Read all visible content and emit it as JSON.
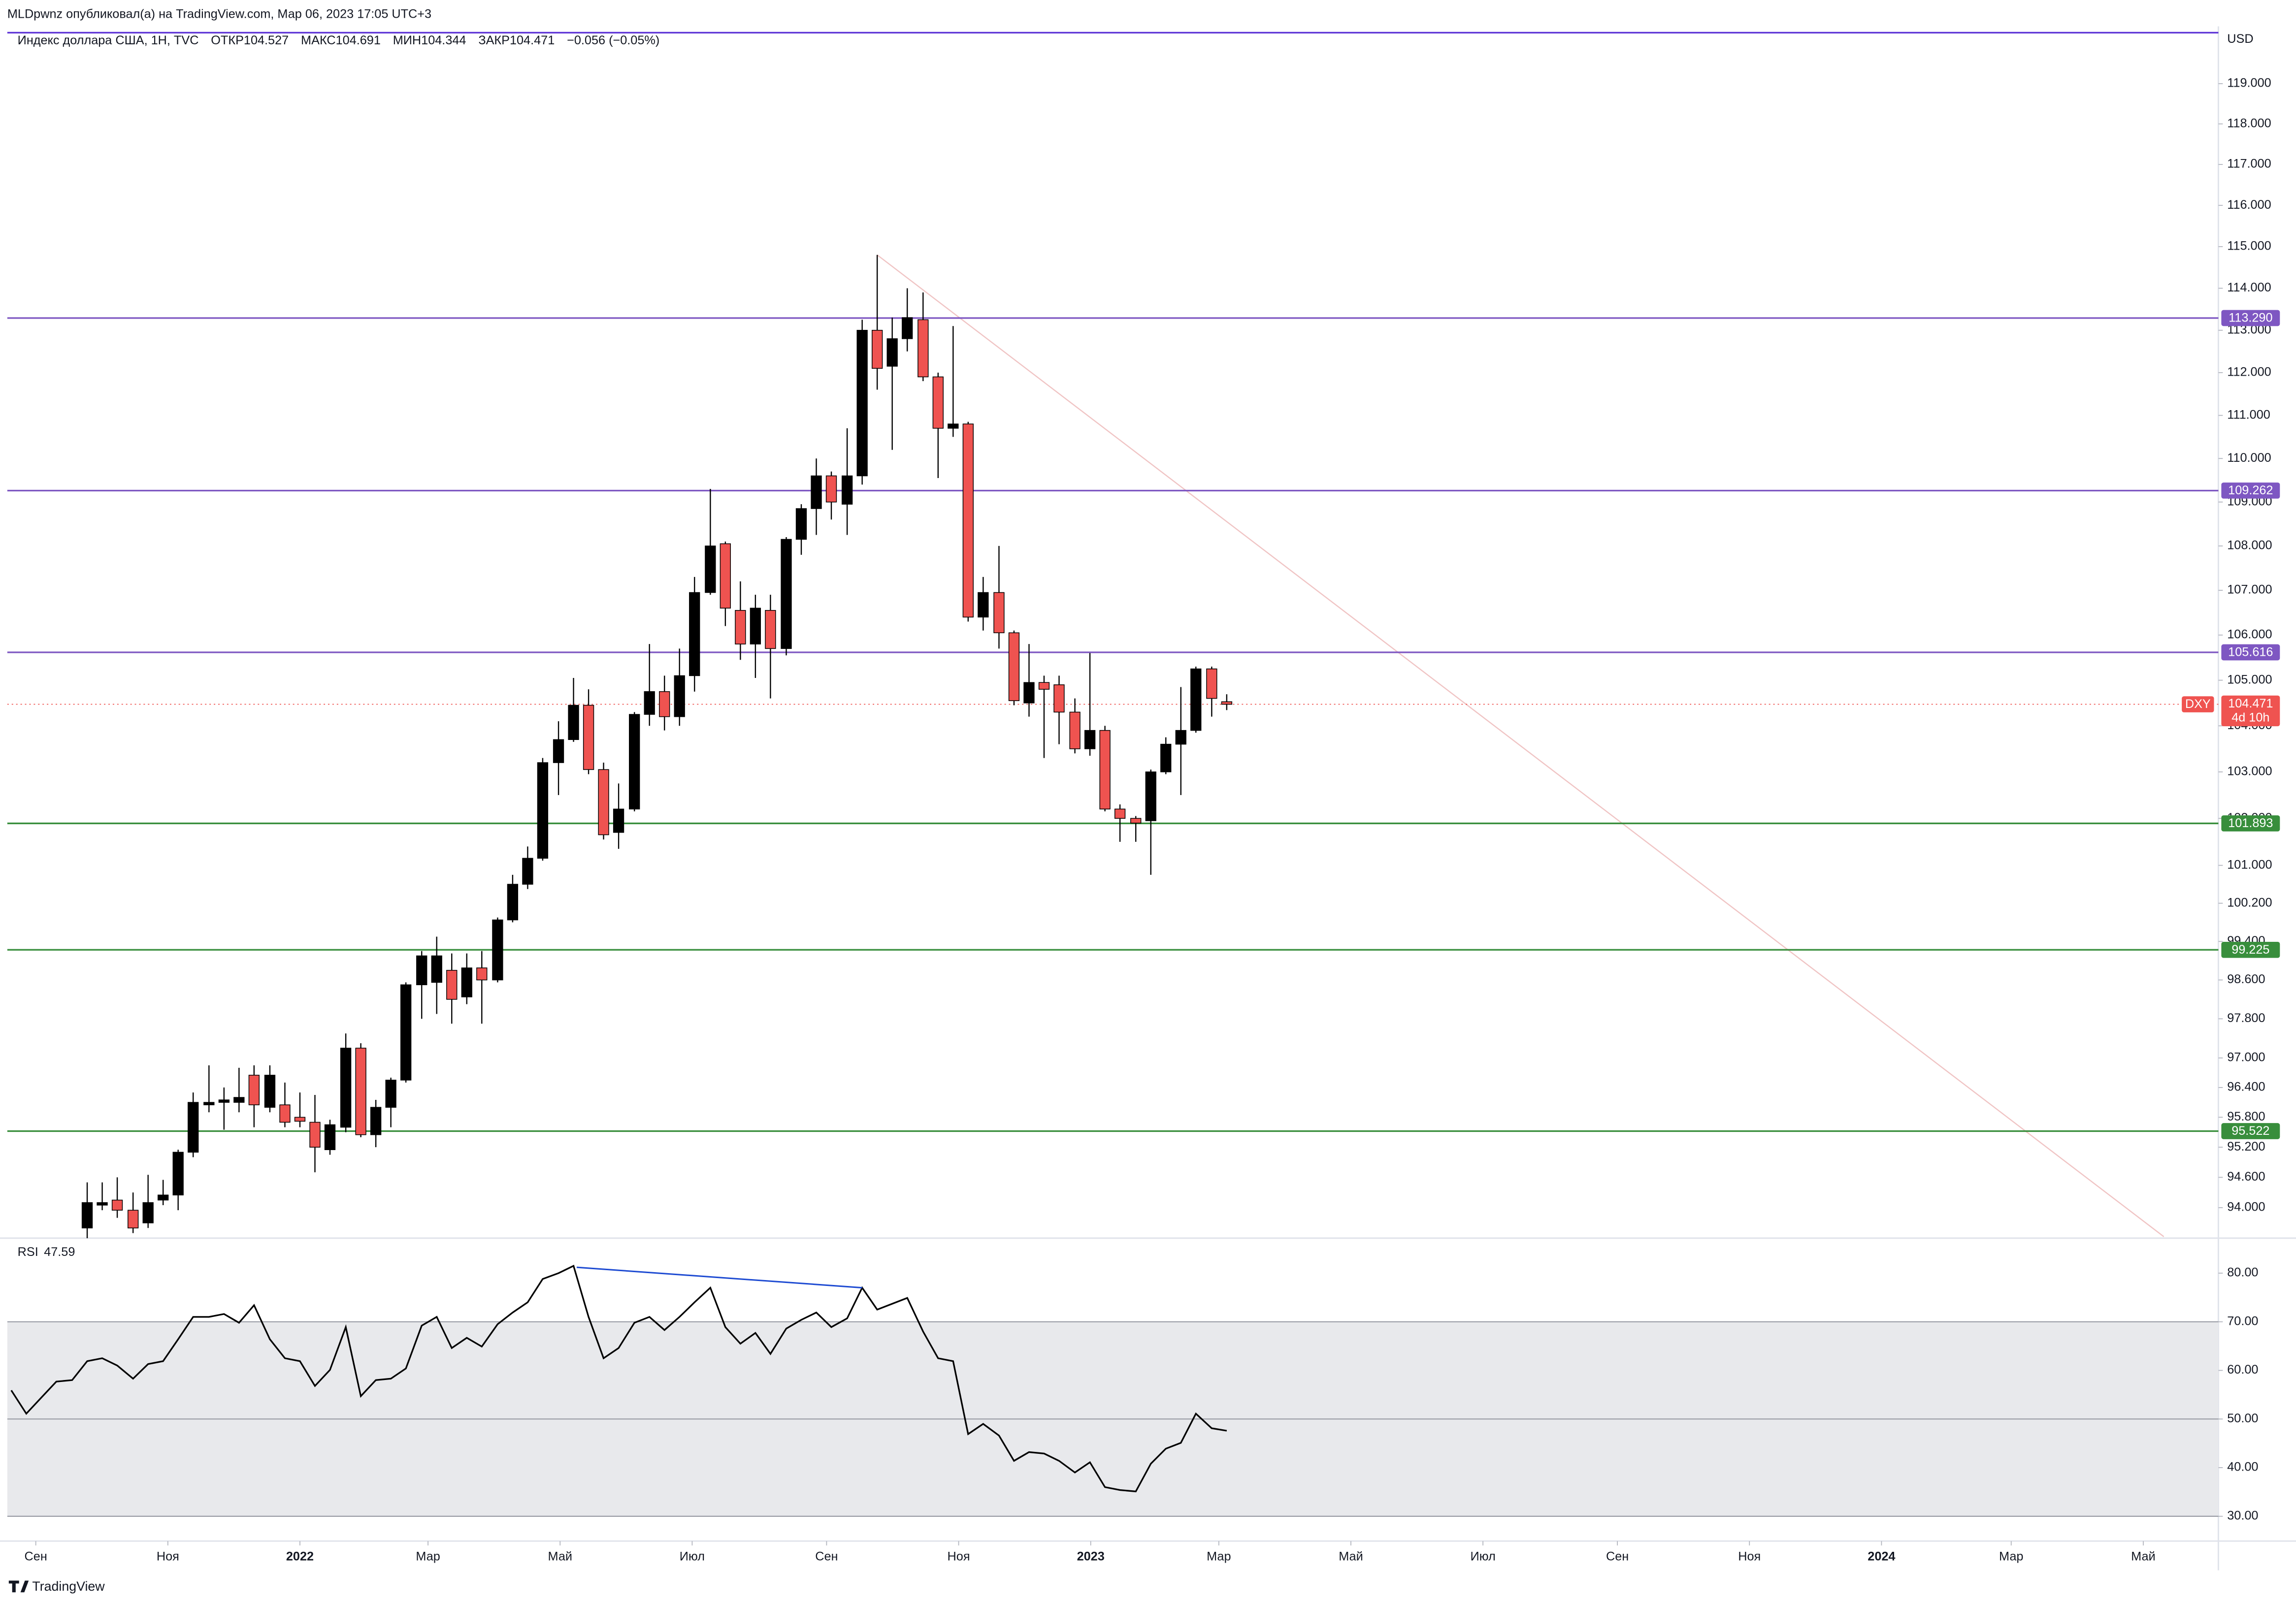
{
  "header": {
    "publisher": "MLDpwnz опубликовал(а) на TradingView.com, Мар 06, 2023 17:05 UTC+3",
    "currency": "USD"
  },
  "footer": {
    "brand": "TradingView"
  },
  "chart_data": [
    {
      "type": "candlestick",
      "title": "Индекс доллара США, 1Н, TVC",
      "ohlc_legend": [
        "ОТКР104.527",
        "МАКС104.691",
        "МИН104.344",
        "ЗАКР104.471",
        "−0.056 (−0.05%)"
      ],
      "log_scale": true,
      "grid": false,
      "up_color": "#000000",
      "down_color": "#ef5350",
      "xlim": [
        2021.63,
        2024.426
      ],
      "ylim": [
        93.43,
        120.44
      ],
      "yticks": [
        {
          "value": 119,
          "label": "119.000"
        },
        {
          "value": 118,
          "label": "118.000"
        },
        {
          "value": 117,
          "label": "117.000"
        },
        {
          "value": 116,
          "label": "116.000"
        },
        {
          "value": 115,
          "label": "115.000"
        },
        {
          "value": 114,
          "label": "114.000"
        },
        {
          "value": 113,
          "label": "113.000"
        },
        {
          "value": 112,
          "label": "112.000"
        },
        {
          "value": 111,
          "label": "111.000"
        },
        {
          "value": 110,
          "label": "110.000"
        },
        {
          "value": 109,
          "label": "109.000"
        },
        {
          "value": 108,
          "label": "108.000"
        },
        {
          "value": 107,
          "label": "107.000"
        },
        {
          "value": 106,
          "label": "106.000"
        },
        {
          "value": 105,
          "label": "105.000"
        },
        {
          "value": 104,
          "label": "104.000"
        },
        {
          "value": 103,
          "label": "103.000"
        },
        {
          "value": 102,
          "label": "102.000"
        },
        {
          "value": 101,
          "label": "101.000"
        },
        {
          "value": 100.2,
          "label": "100.200"
        },
        {
          "value": 99.4,
          "label": "99.400"
        },
        {
          "value": 98.6,
          "label": "98.600"
        },
        {
          "value": 97.8,
          "label": "97.800"
        },
        {
          "value": 97,
          "label": "97.000"
        },
        {
          "value": 96.4,
          "label": "96.400"
        },
        {
          "value": 95.8,
          "label": "95.800"
        },
        {
          "value": 95.2,
          "label": "95.200"
        },
        {
          "value": 94.6,
          "label": "94.600"
        },
        {
          "value": 94,
          "label": "94.000"
        }
      ],
      "x": [
        2021.731,
        2021.75,
        2021.769,
        2021.789,
        2021.808,
        2021.827,
        2021.846,
        2021.865,
        2021.885,
        2021.904,
        2021.923,
        2021.942,
        2021.962,
        2021.981,
        2022.0,
        2022.019,
        2022.038,
        2022.058,
        2022.077,
        2022.096,
        2022.115,
        2022.134,
        2022.154,
        2022.173,
        2022.192,
        2022.211,
        2022.23,
        2022.25,
        2022.269,
        2022.288,
        2022.307,
        2022.327,
        2022.346,
        2022.365,
        2022.384,
        2022.403,
        2022.423,
        2022.442,
        2022.461,
        2022.48,
        2022.499,
        2022.519,
        2022.538,
        2022.557,
        2022.576,
        2022.595,
        2022.615,
        2022.634,
        2022.653,
        2022.672,
        2022.692,
        2022.711,
        2022.73,
        2022.749,
        2022.768,
        2022.788,
        2022.807,
        2022.826,
        2022.845,
        2022.864,
        2022.884,
        2022.903,
        2022.922,
        2022.941,
        2022.96,
        2022.98,
        2022.999,
        2023.018,
        2023.037,
        2023.057,
        2023.076,
        2023.095,
        2023.114,
        2023.133,
        2023.153,
        2023.172
      ],
      "open": [
        93.6,
        94.05,
        94.15,
        93.95,
        93.7,
        94.15,
        94.25,
        95.1,
        96.05,
        96.1,
        96.1,
        96.65,
        96.0,
        96.05,
        95.8,
        95.7,
        95.15,
        95.6,
        97.2,
        95.45,
        96.0,
        96.55,
        98.5,
        98.55,
        98.8,
        98.25,
        98.85,
        98.6,
        99.85,
        100.6,
        101.15,
        103.2,
        103.7,
        104.45,
        103.05,
        101.7,
        102.2,
        104.25,
        104.75,
        104.2,
        105.1,
        106.95,
        108.05,
        106.55,
        105.8,
        106.55,
        105.7,
        108.15,
        108.85,
        109.6,
        108.95,
        109.6,
        113.0,
        112.15,
        112.8,
        113.25,
        111.9,
        110.7,
        110.8,
        106.4,
        106.95,
        106.05,
        104.5,
        104.95,
        104.9,
        104.3,
        103.5,
        103.9,
        102.2,
        102.0,
        101.95,
        103.0,
        103.6,
        103.9,
        105.25,
        104.527
      ],
      "high": [
        94.5,
        94.5,
        94.6,
        94.3,
        94.65,
        94.55,
        95.15,
        96.3,
        96.85,
        96.4,
        96.8,
        96.85,
        96.85,
        96.5,
        96.3,
        96.25,
        95.75,
        97.5,
        97.3,
        96.15,
        96.6,
        98.55,
        99.2,
        99.5,
        99.15,
        99.15,
        99.2,
        99.9,
        100.8,
        101.4,
        103.3,
        104.1,
        105.05,
        104.8,
        103.2,
        102.75,
        104.3,
        105.8,
        105.1,
        105.7,
        107.3,
        109.3,
        108.1,
        107.2,
        106.9,
        106.9,
        108.2,
        108.95,
        110.0,
        109.7,
        110.7,
        113.25,
        114.8,
        113.3,
        114.0,
        113.9,
        112.0,
        113.1,
        110.85,
        107.3,
        108.0,
        106.1,
        105.8,
        105.1,
        105.1,
        104.6,
        105.6,
        104.0,
        102.3,
        102.05,
        103.05,
        103.75,
        104.85,
        105.3,
        105.3,
        104.691
      ],
      "low": [
        93.4,
        93.95,
        93.8,
        93.5,
        93.6,
        94.05,
        93.95,
        95.0,
        95.9,
        95.55,
        95.9,
        95.6,
        95.9,
        95.6,
        95.6,
        94.7,
        95.05,
        95.5,
        95.4,
        95.2,
        95.6,
        96.5,
        97.8,
        97.9,
        97.7,
        98.1,
        97.7,
        98.55,
        99.8,
        100.5,
        101.1,
        102.5,
        103.65,
        102.95,
        101.55,
        101.35,
        102.15,
        104.0,
        103.9,
        104.0,
        104.75,
        106.9,
        106.2,
        105.45,
        105.05,
        104.6,
        105.55,
        107.8,
        108.25,
        108.6,
        108.25,
        109.4,
        111.6,
        110.2,
        112.5,
        111.8,
        109.55,
        110.5,
        106.3,
        106.1,
        105.7,
        104.45,
        104.2,
        103.3,
        103.6,
        103.4,
        103.35,
        102.15,
        101.5,
        101.5,
        100.8,
        102.95,
        102.5,
        103.85,
        104.2,
        104.344
      ],
      "close": [
        94.1,
        94.1,
        93.95,
        93.6,
        94.1,
        94.25,
        95.1,
        96.1,
        96.1,
        96.15,
        96.2,
        96.05,
        96.65,
        95.7,
        95.72,
        95.2,
        95.65,
        97.2,
        95.45,
        96.0,
        96.55,
        98.5,
        99.1,
        99.1,
        98.2,
        98.85,
        98.6,
        99.85,
        100.6,
        101.15,
        103.2,
        103.7,
        104.45,
        103.05,
        101.65,
        102.2,
        104.25,
        104.75,
        104.2,
        105.1,
        106.95,
        108.0,
        106.6,
        105.8,
        106.6,
        105.7,
        108.15,
        108.85,
        109.6,
        109.0,
        109.6,
        113.0,
        112.1,
        112.8,
        113.3,
        111.9,
        110.7,
        110.8,
        106.4,
        106.95,
        106.05,
        104.55,
        104.95,
        104.8,
        104.3,
        103.5,
        103.9,
        102.2,
        102.0,
        101.9,
        103.0,
        103.6,
        103.9,
        105.25,
        104.6,
        104.471
      ],
      "levels": [
        {
          "value": 120.28,
          "color": "#5e35d6"
        },
        {
          "value": 113.29,
          "label": "113.290",
          "color": "#7e57c2"
        },
        {
          "value": 109.262,
          "label": "109.262",
          "color": "#7e57c2"
        },
        {
          "value": 105.616,
          "label": "105.616",
          "color": "#7e57c2"
        },
        {
          "value": 101.893,
          "label": "101.893",
          "color": "#388e3c"
        },
        {
          "value": 99.225,
          "label": "99.225",
          "color": "#388e3c"
        },
        {
          "value": 95.522,
          "label": "95.522",
          "color": "#388e3c"
        }
      ],
      "last": {
        "name": "DXY",
        "value": 104.471,
        "label": "104.471",
        "countdown": "4d 10h",
        "color": "#ef5350"
      },
      "trendline": {
        "x": [
          2022.73,
          2024.357
        ],
        "values": [
          114.8,
          93.43
        ],
        "color": "#f0c4c4"
      }
    },
    {
      "type": "line",
      "name": "RSI",
      "color": "#000000",
      "xlim": [
        2021.63,
        2024.426
      ],
      "ylim": [
        24.9,
        86.9
      ],
      "yticks": [
        {
          "value": 80,
          "label": "80.00"
        },
        {
          "value": 70,
          "label": "70.00"
        },
        {
          "value": 60,
          "label": "60.00"
        },
        {
          "value": 50,
          "label": "50.00"
        },
        {
          "value": 40,
          "label": "40.00"
        },
        {
          "value": 30,
          "label": "30.00"
        }
      ],
      "band": [
        30,
        70
      ],
      "band_color": "#e8e9ec",
      "levels": [
        70,
        50,
        30
      ],
      "xticks": [
        {
          "value": 2021.666,
          "label": "Сен"
        },
        {
          "value": 2021.833,
          "label": "Ноя"
        },
        2022,
        {
          "value": 2022.162,
          "label": "Мар"
        },
        {
          "value": 2022.329,
          "label": "Май"
        },
        {
          "value": 2022.496,
          "label": "Июл"
        },
        {
          "value": 2022.666,
          "label": "Сен"
        },
        {
          "value": 2022.833,
          "label": "Ноя"
        },
        2023,
        {
          "value": 2023.162,
          "label": "Мар"
        },
        {
          "value": 2023.329,
          "label": "Май"
        },
        {
          "value": 2023.496,
          "label": "Июл"
        },
        {
          "value": 2023.666,
          "label": "Сен"
        },
        {
          "value": 2023.833,
          "label": "Ноя"
        },
        2024,
        {
          "value": 2024.164,
          "label": "Мар"
        },
        {
          "value": 2024.331,
          "label": "Май"
        }
      ],
      "x": [
        2021.635,
        2021.654,
        2021.673,
        2021.692,
        2021.712,
        2021.731,
        2021.75,
        2021.769,
        2021.789,
        2021.808,
        2021.827,
        2021.846,
        2021.865,
        2021.885,
        2021.904,
        2021.923,
        2021.942,
        2021.962,
        2021.981,
        2022.0,
        2022.019,
        2022.038,
        2022.058,
        2022.077,
        2022.096,
        2022.115,
        2022.134,
        2022.154,
        2022.173,
        2022.192,
        2022.211,
        2022.23,
        2022.25,
        2022.269,
        2022.288,
        2022.307,
        2022.327,
        2022.346,
        2022.365,
        2022.384,
        2022.403,
        2022.423,
        2022.442,
        2022.461,
        2022.48,
        2022.499,
        2022.519,
        2022.538,
        2022.557,
        2022.576,
        2022.595,
        2022.615,
        2022.634,
        2022.653,
        2022.672,
        2022.692,
        2022.711,
        2022.73,
        2022.749,
        2022.768,
        2022.788,
        2022.807,
        2022.826,
        2022.845,
        2022.864,
        2022.884,
        2022.903,
        2022.922,
        2022.941,
        2022.96,
        2022.98,
        2022.999,
        2023.018,
        2023.037,
        2023.057,
        2023.076,
        2023.095,
        2023.114,
        2023.133,
        2023.153,
        2023.172
      ],
      "values": [
        55.9,
        51.1,
        54.4,
        57.7,
        58.0,
        61.9,
        62.5,
        61.0,
        58.3,
        61.3,
        61.9,
        66.4,
        71.0,
        71.0,
        71.6,
        69.8,
        73.4,
        66.4,
        62.5,
        61.9,
        56.8,
        60.1,
        68.9,
        54.7,
        58.0,
        58.3,
        60.4,
        69.2,
        71.0,
        64.6,
        66.7,
        64.9,
        69.5,
        71.9,
        74.0,
        78.8,
        80.0,
        81.5,
        71.0,
        62.5,
        64.6,
        69.8,
        71.0,
        68.3,
        71.0,
        74.0,
        77.0,
        68.9,
        65.5,
        67.7,
        63.4,
        68.6,
        70.4,
        71.9,
        68.9,
        70.7,
        77.0,
        72.5,
        73.7,
        74.9,
        68.0,
        62.5,
        61.9,
        46.9,
        49.0,
        46.6,
        41.4,
        43.2,
        42.9,
        41.4,
        39.0,
        41.1,
        36.0,
        35.4,
        35.1,
        40.8,
        43.9,
        45.1,
        51.1,
        48.1,
        47.59
      ],
      "divergence": {
        "x": [
          2022.35,
          2022.711
        ],
        "values": [
          81.2,
          77.0
        ],
        "color": "#1e4bd2"
      }
    }
  ]
}
